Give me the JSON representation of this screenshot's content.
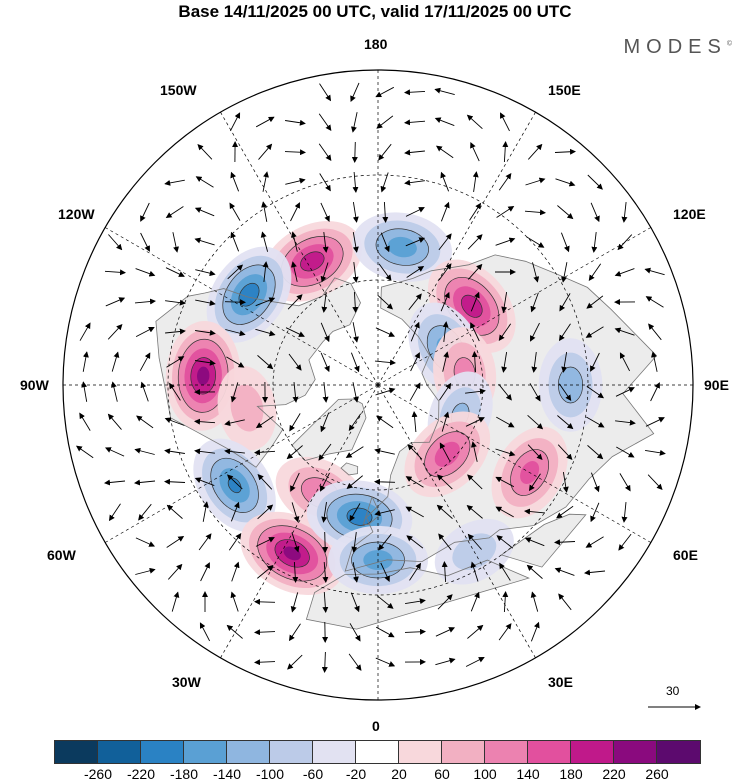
{
  "title": "Base 14/11/2025 00 UTC, valid 17/11/2025 00 UTC",
  "brand": "MODES",
  "brand_mark": "©",
  "lon_labels": {
    "top": "180",
    "upper_left": "150W",
    "upper_right": "150E",
    "mid_upper_left": "120W",
    "mid_upper_right": "120E",
    "left": "90W",
    "right": "90E",
    "mid_lower_left": "60W",
    "mid_lower_right": "60E",
    "lower_left": "30W",
    "lower_right": "30E",
    "bottom": "0"
  },
  "vector_scale": "30",
  "colors": {
    "neg": [
      "#0b3a5e",
      "#11609a",
      "#2a82c4",
      "#5aa0d4",
      "#8fb6e0",
      "#bccbe8",
      "#e2e2f2"
    ],
    "zero": "#ffffff",
    "pos": [
      "#f8d8dc",
      "#f2b0c2",
      "#ec82b0",
      "#e2509e",
      "#c0198a",
      "#8a0a7e",
      "#5c0a6e"
    ],
    "land": "#ececec",
    "coast": "#777777"
  },
  "colorbar_ticks": [
    "-260",
    "-220",
    "-180",
    "-140",
    "-100",
    "-60",
    "-20",
    "20",
    "60",
    "100",
    "140",
    "180",
    "220",
    "260"
  ],
  "anomalies": [
    {
      "lon": -152,
      "lat": 50,
      "value": 200
    },
    {
      "lon": 170,
      "lat": 50,
      "value": -160
    },
    {
      "lon": 130,
      "lat": 55,
      "value": 200
    },
    {
      "lon": -125,
      "lat": 45,
      "value": -200
    },
    {
      "lon": 118,
      "lat": 68,
      "value": -150
    },
    {
      "lon": 98,
      "lat": 65,
      "value": 110
    },
    {
      "lon": 90,
      "lat": 35,
      "value": -120
    },
    {
      "lon": -93,
      "lat": 40,
      "value": 230
    },
    {
      "lon": -80,
      "lat": 52,
      "value": 80
    },
    {
      "lon": -55,
      "lat": 40,
      "value": -180
    },
    {
      "lon": 70,
      "lat": 65,
      "value": -100
    },
    {
      "lon": 45,
      "lat": 62,
      "value": 160
    },
    {
      "lon": 60,
      "lat": 40,
      "value": 150
    },
    {
      "lon": -28,
      "lat": 55,
      "value": 130
    },
    {
      "lon": -27,
      "lat": 36,
      "value": 230
    },
    {
      "lon": -8,
      "lat": 52,
      "value": -200
    },
    {
      "lon": 0,
      "lat": 40,
      "value": -160
    },
    {
      "lon": 30,
      "lat": 35,
      "value": -80
    }
  ]
}
